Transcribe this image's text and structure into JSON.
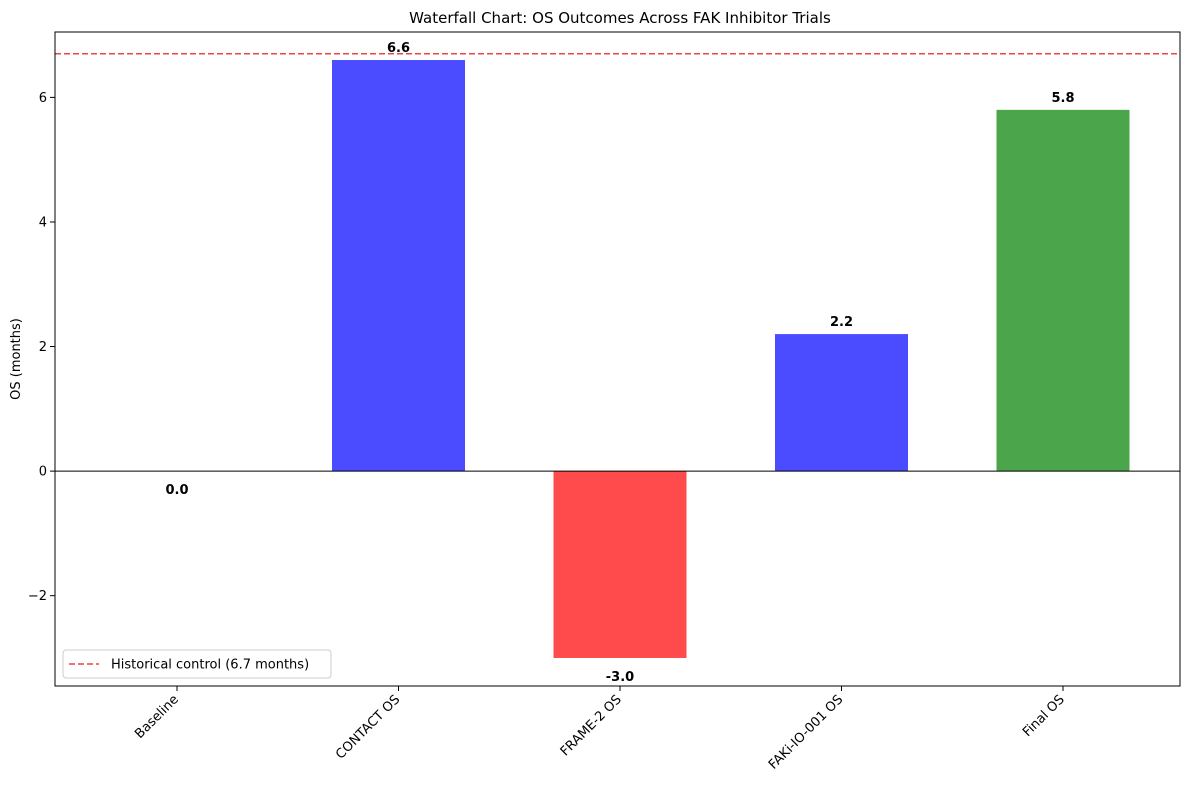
{
  "chart_data": {
    "type": "bar",
    "title": "Waterfall Chart: OS Outcomes Across FAK Inhibitor Trials",
    "xlabel": "",
    "ylabel": "OS (months)",
    "categories": [
      "Baseline",
      "CONTACT OS",
      "FRAME-2 OS",
      "FAKi-IO-001 OS",
      "Final OS"
    ],
    "values": [
      0.0,
      6.6,
      -3.0,
      2.2,
      5.8
    ],
    "data_labels": [
      "0.0",
      "6.6",
      "-3.0",
      "2.2",
      "5.8"
    ],
    "bar_colors": [
      "#4b4bff",
      "#4b4bff",
      "#ff4b4b",
      "#4b4bff",
      "#4ba64b"
    ],
    "ylim": [
      -3.45,
      7.05
    ],
    "yticks": [
      -2,
      0,
      2,
      4,
      6
    ],
    "ytick_labels": [
      "−2",
      "0",
      "2",
      "4",
      "6"
    ],
    "grid": false,
    "reference_line": {
      "value": 6.7,
      "label": "Historical control (6.7 months)",
      "color": "#ee4444",
      "style": "dashed"
    },
    "legend": {
      "placement": "lower-left",
      "entries": [
        "Historical control (6.7 months)"
      ]
    }
  }
}
